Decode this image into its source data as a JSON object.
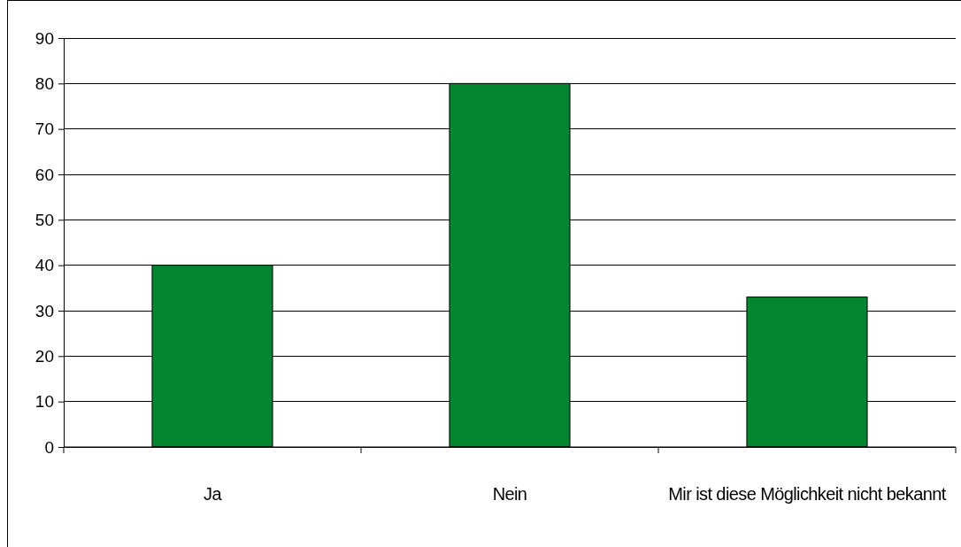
{
  "chart_data": {
    "type": "bar",
    "categories": [
      "Ja",
      "Nein",
      "Mir ist diese Möglichkeit nicht bekannt"
    ],
    "values": [
      40,
      80,
      33
    ],
    "color": "#03862f",
    "ylim": [
      0,
      90
    ],
    "yticks": [
      0,
      10,
      20,
      30,
      40,
      50,
      60,
      70,
      80,
      90
    ],
    "grid": "y"
  }
}
